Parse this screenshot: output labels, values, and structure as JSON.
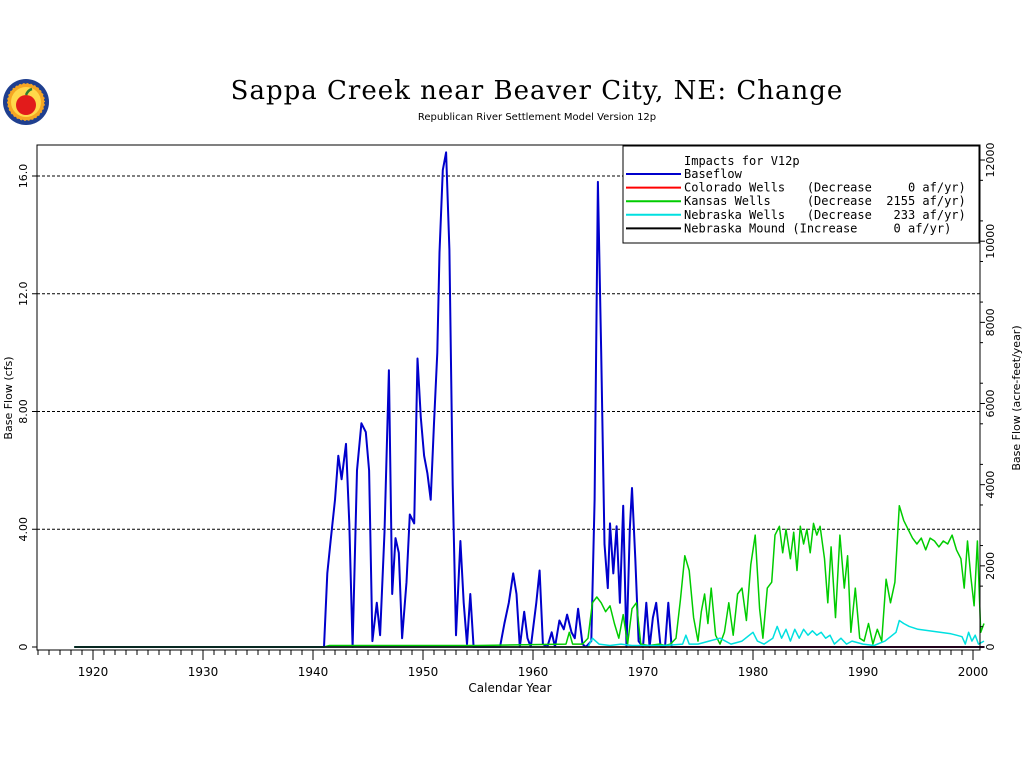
{
  "header": {
    "title": "Sappa Creek near Beaver City, NE: Change",
    "subtitle": "Republican River Settlement Model Version 12p",
    "logo_icon": "apple-seal-icon"
  },
  "chart_data": {
    "type": "line",
    "title": "Sappa Creek near Beaver City, NE: Change",
    "subtitle": "Republican River Settlement Model Version 12p",
    "xlabel": "Calendar Year",
    "ylabel": "Base Flow (cfs)",
    "ylabel_right": "Base Flow (acre-feet/year)",
    "xlim": [
      1915,
      2001
    ],
    "ylim": [
      0,
      17
    ],
    "ylim_right": [
      0,
      12310
    ],
    "x_ticks": [
      1920,
      1930,
      1940,
      1950,
      1960,
      1970,
      1980,
      1990,
      2000
    ],
    "x_tick_labels": [
      "1920",
      "1930",
      "1940",
      "1950",
      "1960",
      "1970",
      "1980",
      "1990",
      "2000"
    ],
    "y_ticks": [
      0,
      4,
      8,
      12,
      16
    ],
    "y_tick_labels": [
      "0",
      "4.00",
      "8.00",
      "12.0",
      "16.0"
    ],
    "y_right_ticks": [
      0,
      2000,
      4000,
      6000,
      8000,
      10000,
      12000
    ],
    "y_right_tick_labels": [
      "0",
      "2000",
      "4000",
      "6000",
      "8000",
      "10000",
      "12000"
    ],
    "grid": "horizontal dashed at left ticks",
    "legend_position": "top-right",
    "legend_title": "Impacts for V12p",
    "series": [
      {
        "name": "Baseflow",
        "legend_label": "Baseflow",
        "color": "#0000cc",
        "points": [
          [
            1918.3,
            0
          ],
          [
            1941.0,
            0
          ],
          [
            1941.3,
            2.5
          ],
          [
            1941.6,
            3.6
          ],
          [
            1942.0,
            5.0
          ],
          [
            1942.3,
            6.5
          ],
          [
            1942.6,
            5.7
          ],
          [
            1943.0,
            6.9
          ],
          [
            1943.3,
            4.2
          ],
          [
            1943.6,
            0
          ],
          [
            1944.0,
            6.0
          ],
          [
            1944.4,
            7.6
          ],
          [
            1944.8,
            7.3
          ],
          [
            1945.1,
            6.0
          ],
          [
            1945.4,
            0.2
          ],
          [
            1945.8,
            1.5
          ],
          [
            1946.1,
            0.4
          ],
          [
            1946.5,
            3.9
          ],
          [
            1946.9,
            9.4
          ],
          [
            1947.2,
            1.8
          ],
          [
            1947.5,
            3.7
          ],
          [
            1947.8,
            3.2
          ],
          [
            1948.1,
            0.3
          ],
          [
            1948.5,
            2.2
          ],
          [
            1948.8,
            4.5
          ],
          [
            1949.2,
            4.2
          ],
          [
            1949.5,
            9.8
          ],
          [
            1949.8,
            7.8
          ],
          [
            1950.1,
            6.5
          ],
          [
            1950.4,
            5.9
          ],
          [
            1950.7,
            5.0
          ],
          [
            1951.0,
            7.6
          ],
          [
            1951.3,
            10.0
          ],
          [
            1951.5,
            13.4
          ],
          [
            1951.8,
            16.2
          ],
          [
            1952.1,
            16.8
          ],
          [
            1952.4,
            13.5
          ],
          [
            1952.7,
            5.5
          ],
          [
            1953.0,
            0.4
          ],
          [
            1953.4,
            3.6
          ],
          [
            1953.7,
            1.5
          ],
          [
            1954.0,
            0.1
          ],
          [
            1954.3,
            1.8
          ],
          [
            1954.6,
            0
          ],
          [
            1957.0,
            0
          ],
          [
            1957.4,
            0.8
          ],
          [
            1957.8,
            1.5
          ],
          [
            1958.2,
            2.5
          ],
          [
            1958.5,
            1.8
          ],
          [
            1958.8,
            0
          ],
          [
            1959.2,
            1.2
          ],
          [
            1959.5,
            0.3
          ],
          [
            1959.8,
            0
          ],
          [
            1960.3,
            1.5
          ],
          [
            1960.6,
            2.6
          ],
          [
            1960.9,
            0.1
          ],
          [
            1961.3,
            0
          ],
          [
            1961.7,
            0.5
          ],
          [
            1962.0,
            0
          ],
          [
            1962.4,
            0.9
          ],
          [
            1962.8,
            0.6
          ],
          [
            1963.1,
            1.1
          ],
          [
            1963.5,
            0.5
          ],
          [
            1963.8,
            0.3
          ],
          [
            1964.1,
            1.3
          ],
          [
            1964.5,
            0.1
          ],
          [
            1964.8,
            0
          ],
          [
            1965.3,
            0.2
          ],
          [
            1965.6,
            5.0
          ],
          [
            1965.9,
            15.8
          ],
          [
            1966.2,
            10.0
          ],
          [
            1966.5,
            3.5
          ],
          [
            1966.8,
            2.0
          ],
          [
            1967.0,
            4.2
          ],
          [
            1967.3,
            2.5
          ],
          [
            1967.6,
            4.1
          ],
          [
            1967.9,
            1.5
          ],
          [
            1968.2,
            4.8
          ],
          [
            1968.5,
            0
          ],
          [
            1968.8,
            4.0
          ],
          [
            1969.0,
            5.4
          ],
          [
            1969.3,
            3.0
          ],
          [
            1969.6,
            0.2
          ],
          [
            1970.0,
            0
          ],
          [
            1970.3,
            1.5
          ],
          [
            1970.6,
            0
          ],
          [
            1970.9,
            1.0
          ],
          [
            1971.2,
            1.5
          ],
          [
            1971.6,
            0
          ],
          [
            1972.0,
            0
          ],
          [
            1972.3,
            1.5
          ],
          [
            1972.6,
            0
          ],
          [
            2001.0,
            0
          ]
        ]
      },
      {
        "name": "Colorado Wells",
        "legend_label": "Colorado Wells   (Decrease     0 af/yr)",
        "color": "#ff0000",
        "points": [
          [
            1918.3,
            0
          ],
          [
            2001.0,
            0
          ]
        ]
      },
      {
        "name": "Kansas Wells",
        "legend_label": "Kansas Wells     (Decrease  2155 af/yr)",
        "color": "#00cc00",
        "points": [
          [
            1918.3,
            0
          ],
          [
            1941.0,
            0
          ],
          [
            1941.5,
            0.05
          ],
          [
            1955.0,
            0.05
          ],
          [
            1963.0,
            0.1
          ],
          [
            1963.3,
            0.5
          ],
          [
            1963.6,
            0.1
          ],
          [
            1964.5,
            0.1
          ],
          [
            1965.0,
            0.3
          ],
          [
            1965.4,
            1.5
          ],
          [
            1965.8,
            1.7
          ],
          [
            1966.2,
            1.5
          ],
          [
            1966.6,
            1.2
          ],
          [
            1967.0,
            1.4
          ],
          [
            1967.4,
            0.8
          ],
          [
            1967.8,
            0.3
          ],
          [
            1968.2,
            1.1
          ],
          [
            1968.6,
            0.1
          ],
          [
            1969.0,
            1.3
          ],
          [
            1969.4,
            1.5
          ],
          [
            1969.8,
            0.1
          ],
          [
            1970.5,
            0.05
          ],
          [
            1971.5,
            0.1
          ],
          [
            1972.0,
            0.05
          ],
          [
            1972.5,
            0.1
          ],
          [
            1973.0,
            0.3
          ],
          [
            1973.4,
            1.6
          ],
          [
            1973.8,
            3.1
          ],
          [
            1974.2,
            2.6
          ],
          [
            1974.6,
            1.0
          ],
          [
            1975.0,
            0.2
          ],
          [
            1975.3,
            1.2
          ],
          [
            1975.6,
            1.8
          ],
          [
            1975.9,
            0.8
          ],
          [
            1976.2,
            2.0
          ],
          [
            1976.6,
            0.4
          ],
          [
            1977.0,
            0.1
          ],
          [
            1977.4,
            0.5
          ],
          [
            1977.8,
            1.5
          ],
          [
            1978.2,
            0.4
          ],
          [
            1978.6,
            1.8
          ],
          [
            1979.0,
            2.0
          ],
          [
            1979.4,
            0.9
          ],
          [
            1979.8,
            2.8
          ],
          [
            1980.2,
            3.8
          ],
          [
            1980.6,
            1.3
          ],
          [
            1980.9,
            0.3
          ],
          [
            1981.3,
            2.0
          ],
          [
            1981.7,
            2.2
          ],
          [
            1982.0,
            3.8
          ],
          [
            1982.4,
            4.1
          ],
          [
            1982.7,
            3.2
          ],
          [
            1983.0,
            4.0
          ],
          [
            1983.4,
            3.0
          ],
          [
            1983.7,
            3.9
          ],
          [
            1984.0,
            2.6
          ],
          [
            1984.3,
            4.1
          ],
          [
            1984.6,
            3.5
          ],
          [
            1984.9,
            4.0
          ],
          [
            1985.2,
            3.2
          ],
          [
            1985.5,
            4.2
          ],
          [
            1985.8,
            3.8
          ],
          [
            1986.1,
            4.1
          ],
          [
            1986.5,
            3.0
          ],
          [
            1986.8,
            1.5
          ],
          [
            1987.1,
            3.4
          ],
          [
            1987.5,
            1.0
          ],
          [
            1987.9,
            3.8
          ],
          [
            1988.3,
            2.0
          ],
          [
            1988.6,
            3.1
          ],
          [
            1988.9,
            0.5
          ],
          [
            1989.3,
            2.0
          ],
          [
            1989.7,
            0.3
          ],
          [
            1990.1,
            0.2
          ],
          [
            1990.5,
            0.8
          ],
          [
            1990.9,
            0.1
          ],
          [
            1991.3,
            0.6
          ],
          [
            1991.7,
            0.2
          ],
          [
            1992.1,
            2.3
          ],
          [
            1992.5,
            1.5
          ],
          [
            1992.9,
            2.2
          ],
          [
            1993.3,
            4.8
          ],
          [
            1993.7,
            4.3
          ],
          [
            1994.1,
            4.0
          ],
          [
            1994.5,
            3.7
          ],
          [
            1994.9,
            3.5
          ],
          [
            1995.3,
            3.7
          ],
          [
            1995.7,
            3.3
          ],
          [
            1996.1,
            3.7
          ],
          [
            1996.5,
            3.6
          ],
          [
            1996.9,
            3.4
          ],
          [
            1997.3,
            3.6
          ],
          [
            1997.7,
            3.5
          ],
          [
            1998.1,
            3.8
          ],
          [
            1998.5,
            3.3
          ],
          [
            1998.9,
            3.0
          ],
          [
            1999.2,
            2.0
          ],
          [
            1999.5,
            3.6
          ],
          [
            1999.8,
            2.4
          ],
          [
            2000.1,
            1.4
          ],
          [
            2000.4,
            3.6
          ],
          [
            2000.7,
            0.5
          ],
          [
            2001.0,
            0.8
          ]
        ]
      },
      {
        "name": "Nebraska Wells",
        "legend_label": "Nebraska Wells   (Decrease   233 af/yr)",
        "color": "#00e0e0",
        "points": [
          [
            1918.3,
            0
          ],
          [
            1965.0,
            0
          ],
          [
            1965.4,
            0.3
          ],
          [
            1966.0,
            0.1
          ],
          [
            1967.0,
            0.05
          ],
          [
            1968.0,
            0.1
          ],
          [
            1969.0,
            0.05
          ],
          [
            1972.0,
            0.05
          ],
          [
            1973.6,
            0.1
          ],
          [
            1973.9,
            0.4
          ],
          [
            1974.2,
            0.1
          ],
          [
            1975.0,
            0.1
          ],
          [
            1976.0,
            0.2
          ],
          [
            1977.0,
            0.3
          ],
          [
            1978.0,
            0.1
          ],
          [
            1979.0,
            0.2
          ],
          [
            1980.0,
            0.5
          ],
          [
            1980.4,
            0.2
          ],
          [
            1981.0,
            0.1
          ],
          [
            1981.8,
            0.3
          ],
          [
            1982.2,
            0.7
          ],
          [
            1982.6,
            0.3
          ],
          [
            1983.0,
            0.6
          ],
          [
            1983.4,
            0.2
          ],
          [
            1983.8,
            0.6
          ],
          [
            1984.2,
            0.3
          ],
          [
            1984.6,
            0.6
          ],
          [
            1985.0,
            0.4
          ],
          [
            1985.4,
            0.55
          ],
          [
            1985.8,
            0.4
          ],
          [
            1986.2,
            0.5
          ],
          [
            1986.6,
            0.3
          ],
          [
            1987.0,
            0.4
          ],
          [
            1987.4,
            0.1
          ],
          [
            1988.0,
            0.3
          ],
          [
            1988.5,
            0.1
          ],
          [
            1989.0,
            0.2
          ],
          [
            1990.0,
            0.1
          ],
          [
            1991.0,
            0.05
          ],
          [
            1992.0,
            0.2
          ],
          [
            1993.0,
            0.5
          ],
          [
            1993.3,
            0.9
          ],
          [
            1993.7,
            0.8
          ],
          [
            1994.2,
            0.7
          ],
          [
            1995.0,
            0.6
          ],
          [
            1996.0,
            0.55
          ],
          [
            1997.0,
            0.5
          ],
          [
            1998.0,
            0.45
          ],
          [
            1998.5,
            0.4
          ],
          [
            1999.0,
            0.35
          ],
          [
            1999.3,
            0.1
          ],
          [
            1999.6,
            0.5
          ],
          [
            1999.9,
            0.2
          ],
          [
            2000.2,
            0.4
          ],
          [
            2000.5,
            0.1
          ],
          [
            2001.0,
            0.2
          ]
        ]
      },
      {
        "name": "Nebraska Mound",
        "legend_label": "Nebraska Mound (Increase     0 af/yr)",
        "color": "#000000",
        "points": [
          [
            1918.3,
            0
          ],
          [
            2001.0,
            0
          ]
        ]
      }
    ]
  }
}
